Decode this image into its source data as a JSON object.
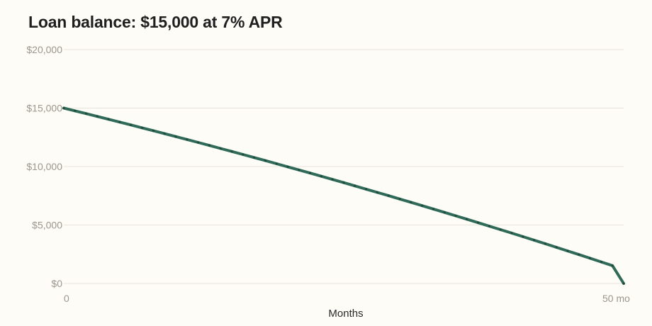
{
  "chart_data": {
    "type": "line",
    "title": "Loan balance: $15,000 at 7% APR",
    "xlabel": "Months",
    "ylabel": "",
    "xlim": [
      0,
      50
    ],
    "ylim": [
      0,
      20000
    ],
    "x_ticks": [
      {
        "value": 0,
        "label": "0"
      },
      {
        "value": 50,
        "label": "50 mo"
      }
    ],
    "y_ticks": [
      {
        "value": 0,
        "label": "$0"
      },
      {
        "value": 5000,
        "label": "$5,000"
      },
      {
        "value": 10000,
        "label": "$10,000"
      },
      {
        "value": 15000,
        "label": "$15,000"
      },
      {
        "value": 20000,
        "label": "$20,000"
      }
    ],
    "grid": true,
    "legend": "none",
    "line_color": "#2f6b58",
    "series": [
      {
        "x": [
          0,
          1,
          2,
          3,
          4,
          5,
          6,
          7,
          8,
          9,
          10,
          11,
          12,
          13,
          14,
          15,
          16,
          17,
          18,
          19,
          20,
          21,
          22,
          23,
          24,
          25,
          26,
          27,
          28,
          29,
          30,
          31,
          32,
          33,
          34,
          35,
          36,
          37,
          38,
          39,
          40,
          41,
          42,
          43,
          44,
          45,
          46,
          47,
          48,
          49,
          50
        ],
        "values": [
          15000,
          14763,
          14525,
          14285,
          14044,
          13801,
          13557,
          13311,
          13064,
          12815,
          12565,
          12313,
          12060,
          11805,
          11548,
          11290,
          11031,
          10769,
          10507,
          10242,
          9976,
          9709,
          9440,
          9169,
          8896,
          8622,
          8347,
          8069,
          7790,
          7509,
          7227,
          6943,
          6657,
          6369,
          6080,
          5789,
          5496,
          5201,
          4905,
          4607,
          4307,
          4006,
          3702,
          3397,
          3090,
          2781,
          2471,
          2158,
          1844,
          1528,
          0
        ]
      }
    ]
  }
}
